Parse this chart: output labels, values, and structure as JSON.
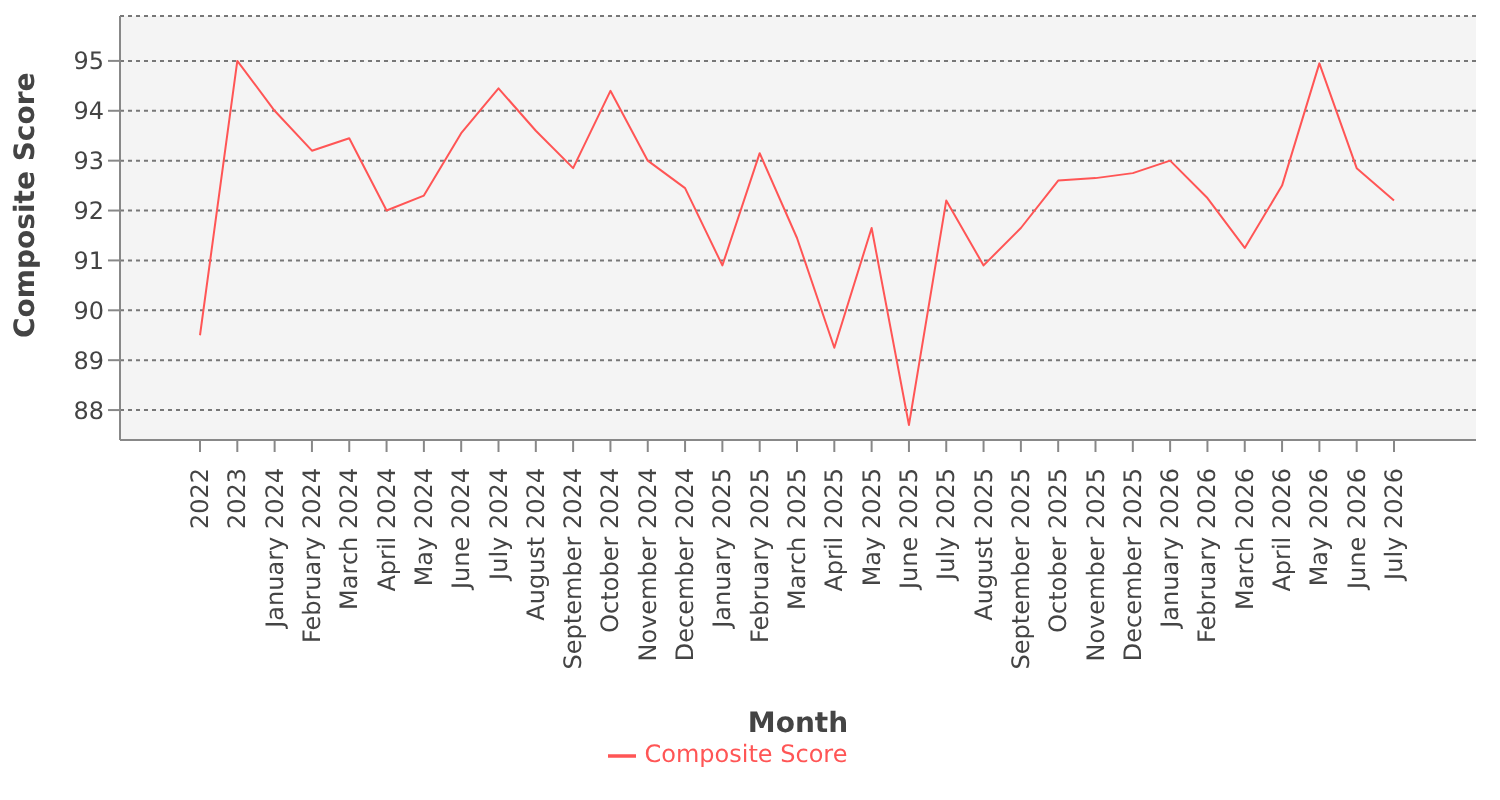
{
  "chart_data": {
    "type": "line",
    "xlabel": "Month",
    "ylabel": "Composite Score",
    "categories": [
      "2022",
      "2023",
      "January 2024",
      "February 2024",
      "March 2024",
      "April 2024",
      "May 2024",
      "June 2024",
      "July 2024",
      "August 2024",
      "September 2024",
      "October 2024",
      "November 2024",
      "December 2024",
      "January 2025",
      "February 2025",
      "March 2025",
      "April 2025",
      "May 2025",
      "June 2025",
      "July 2025",
      "August 2025",
      "September 2025",
      "October 2025",
      "November 2025",
      "December 2025",
      "January 2026",
      "February 2026",
      "March 2026",
      "April 2026",
      "May 2026",
      "June 2026",
      "July 2026"
    ],
    "series": [
      {
        "name": "Composite Score",
        "color": "#ff5555",
        "values": [
          89.5,
          95.0,
          94.0,
          93.2,
          93.45,
          92.0,
          92.3,
          93.55,
          94.45,
          93.6,
          92.85,
          94.4,
          93.0,
          92.45,
          90.9,
          93.15,
          91.45,
          89.25,
          91.65,
          87.7,
          92.2,
          90.9,
          91.65,
          92.6,
          92.65,
          92.75,
          93.0,
          92.25,
          91.25,
          92.5,
          94.95,
          92.85,
          92.2
        ]
      }
    ],
    "ylim": [
      87.4,
      95.9
    ],
    "yticks": [
      88,
      89,
      90,
      91,
      92,
      93,
      94,
      95
    ],
    "grid": "y",
    "legend": "bottom"
  }
}
